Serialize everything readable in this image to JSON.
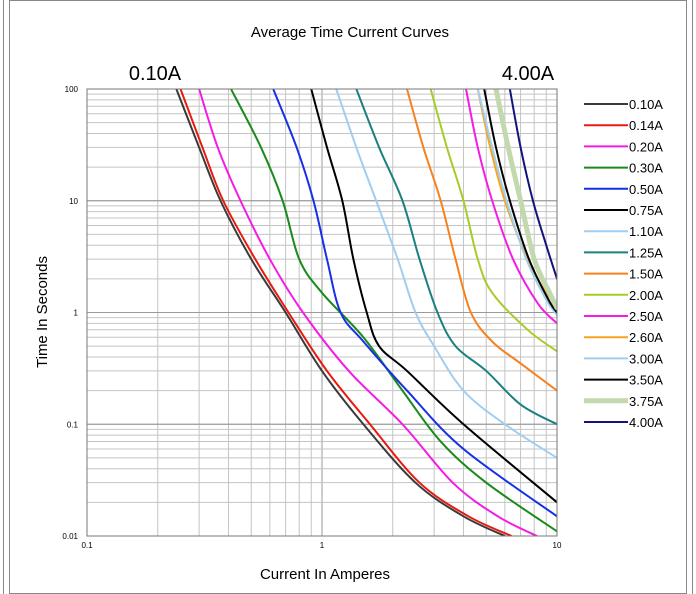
{
  "chart_data": {
    "type": "line",
    "title": "Average Time Current Curves",
    "range_left_label": "0.10A",
    "range_right_label": "4.00A",
    "xlabel": "Current In Amperes",
    "ylabel": "Time In Seconds",
    "x_scale": "log",
    "y_scale": "log",
    "xlim": [
      0.1,
      10
    ],
    "ylim": [
      0.01,
      100
    ],
    "x_ticks": [
      "0.1",
      "1",
      "10"
    ],
    "y_ticks": [
      "0.01",
      "0.1",
      "1",
      "10",
      "100"
    ],
    "grid": true,
    "legend_position": "right",
    "series": [
      {
        "name": "0.10A",
        "color": "#3a3a3a",
        "width": 2,
        "points": [
          [
            0.24,
            100
          ],
          [
            0.3,
            30
          ],
          [
            0.37,
            10
          ],
          [
            0.5,
            3
          ],
          [
            0.7,
            1
          ],
          [
            1,
            0.3
          ],
          [
            1.5,
            0.1
          ],
          [
            2.5,
            0.03
          ],
          [
            4,
            0.015
          ],
          [
            6,
            0.01
          ]
        ]
      },
      {
        "name": "0.14A",
        "color": "#e8190f",
        "width": 2,
        "points": [
          [
            0.25,
            100
          ],
          [
            0.31,
            30
          ],
          [
            0.38,
            10
          ],
          [
            0.52,
            3
          ],
          [
            0.72,
            1
          ],
          [
            1.05,
            0.3
          ],
          [
            1.6,
            0.1
          ],
          [
            2.6,
            0.03
          ],
          [
            4.2,
            0.015
          ],
          [
            6.4,
            0.01
          ]
        ]
      },
      {
        "name": "0.20A",
        "color": "#f41ce4",
        "width": 2,
        "points": [
          [
            0.3,
            100
          ],
          [
            0.36,
            30
          ],
          [
            0.45,
            10
          ],
          [
            0.6,
            3
          ],
          [
            0.83,
            1
          ],
          [
            1.3,
            0.3
          ],
          [
            2.2,
            0.1
          ],
          [
            3.6,
            0.03
          ],
          [
            5.6,
            0.015
          ],
          [
            8.2,
            0.01
          ]
        ]
      },
      {
        "name": "0.30A",
        "color": "#1a8a1a",
        "width": 2,
        "points": [
          [
            0.41,
            100
          ],
          [
            0.55,
            30
          ],
          [
            0.68,
            10
          ],
          [
            0.8,
            3
          ],
          [
            1,
            1.5
          ],
          [
            1.5,
            0.6
          ],
          [
            2.2,
            0.2
          ],
          [
            3.2,
            0.07
          ],
          [
            5,
            0.03
          ],
          [
            10,
            0.011
          ]
        ]
      },
      {
        "name": "0.50A",
        "color": "#1530e6",
        "width": 2,
        "points": [
          [
            0.62,
            100
          ],
          [
            0.78,
            30
          ],
          [
            0.92,
            10
          ],
          [
            1.05,
            3
          ],
          [
            1.2,
            1
          ],
          [
            1.5,
            0.55
          ],
          [
            2.3,
            0.2
          ],
          [
            4,
            0.06
          ],
          [
            10,
            0.015
          ]
        ]
      },
      {
        "name": "0.75A",
        "color": "#000000",
        "width": 2,
        "points": [
          [
            0.9,
            100
          ],
          [
            1.05,
            30
          ],
          [
            1.22,
            10
          ],
          [
            1.36,
            3
          ],
          [
            1.55,
            1
          ],
          [
            1.75,
            0.5
          ],
          [
            2.3,
            0.3
          ],
          [
            4,
            0.1
          ],
          [
            10,
            0.02
          ]
        ]
      },
      {
        "name": "1.10A",
        "color": "#9fcef0",
        "width": 2,
        "points": [
          [
            1.15,
            100
          ],
          [
            1.4,
            30
          ],
          [
            1.7,
            10
          ],
          [
            2.1,
            3
          ],
          [
            2.5,
            1
          ],
          [
            3,
            0.5
          ],
          [
            4,
            0.2
          ],
          [
            6,
            0.1
          ],
          [
            10,
            0.05
          ]
        ]
      },
      {
        "name": "1.25A",
        "color": "#1a8080",
        "width": 2,
        "points": [
          [
            1.4,
            100
          ],
          [
            1.75,
            30
          ],
          [
            2.2,
            10
          ],
          [
            2.6,
            3
          ],
          [
            3.1,
            1
          ],
          [
            3.7,
            0.5
          ],
          [
            5,
            0.3
          ],
          [
            7,
            0.15
          ],
          [
            10,
            0.1
          ]
        ]
      },
      {
        "name": "1.50A",
        "color": "#f5821f",
        "width": 2,
        "points": [
          [
            2.3,
            100
          ],
          [
            2.7,
            30
          ],
          [
            3.2,
            10
          ],
          [
            3.7,
            3
          ],
          [
            4.3,
            1
          ],
          [
            5.3,
            0.55
          ],
          [
            7,
            0.35
          ],
          [
            10,
            0.2
          ]
        ]
      },
      {
        "name": "2.00A",
        "color": "#a6cc2a",
        "width": 2,
        "points": [
          [
            2.9,
            100
          ],
          [
            3.4,
            30
          ],
          [
            4,
            10
          ],
          [
            4.6,
            3
          ],
          [
            5.3,
            1.5
          ],
          [
            7.5,
            0.7
          ],
          [
            10,
            0.45
          ]
        ]
      },
      {
        "name": "2.50A",
        "color": "#f41ce4",
        "width": 2,
        "points": [
          [
            4.1,
            100
          ],
          [
            4.6,
            30
          ],
          [
            5.3,
            10
          ],
          [
            6.5,
            3
          ],
          [
            8.3,
            1.2
          ],
          [
            10,
            0.8
          ]
        ]
      },
      {
        "name": "2.60A",
        "color": "#f5a51f",
        "width": 2,
        "points": [
          [
            4.6,
            100
          ],
          [
            5.2,
            30
          ],
          [
            6,
            10
          ],
          [
            7.5,
            3
          ],
          [
            9,
            1.5
          ],
          [
            10,
            1.2
          ]
        ]
      },
      {
        "name": "3.00A",
        "color": "#9fcef0",
        "width": 2,
        "points": [
          [
            4.6,
            100
          ],
          [
            5.3,
            30
          ],
          [
            6.1,
            10
          ],
          [
            7.4,
            3
          ],
          [
            9,
            1.3
          ],
          [
            10,
            0.95
          ]
        ]
      },
      {
        "name": "3.50A",
        "color": "#000000",
        "width": 2,
        "points": [
          [
            4.9,
            100
          ],
          [
            5.5,
            30
          ],
          [
            6.3,
            10
          ],
          [
            7.6,
            3
          ],
          [
            9.2,
            1.3
          ],
          [
            10,
            1
          ]
        ]
      },
      {
        "name": "3.75A",
        "color": "#c2d9ae",
        "width": 5,
        "points": [
          [
            5.5,
            100
          ],
          [
            6.2,
            30
          ],
          [
            7,
            10
          ],
          [
            8,
            3
          ],
          [
            9.3,
            1.5
          ],
          [
            10,
            1.1
          ]
        ]
      },
      {
        "name": "4.00A",
        "color": "#12127a",
        "width": 2,
        "points": [
          [
            6.3,
            100
          ],
          [
            7,
            30
          ],
          [
            7.9,
            10
          ],
          [
            9,
            4
          ],
          [
            10,
            2
          ]
        ]
      }
    ]
  }
}
